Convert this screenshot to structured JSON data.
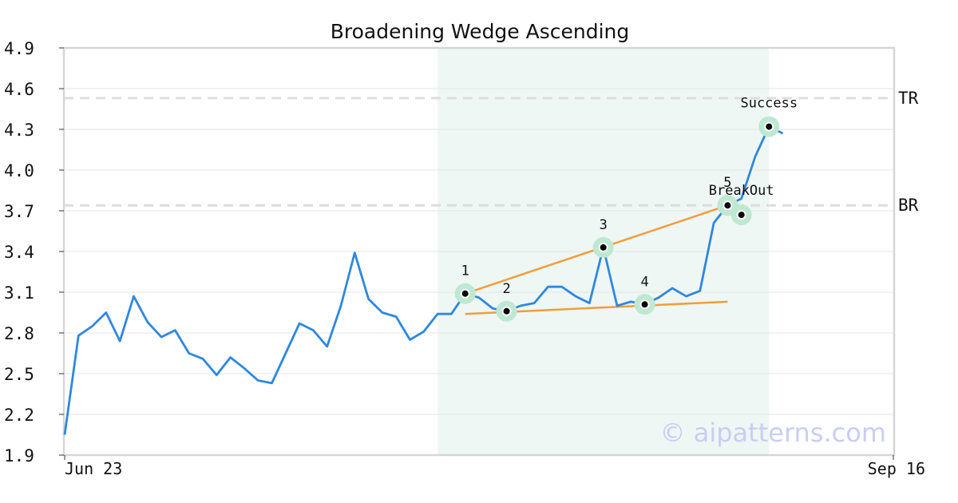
{
  "chart_data": {
    "type": "line",
    "title": "Broadening Wedge Ascending",
    "ylim": [
      1.9,
      4.9
    ],
    "y_ticks": [
      "1.9",
      "2.2",
      "2.5",
      "2.8",
      "3.1",
      "3.4",
      "3.7",
      "4.0",
      "4.3",
      "4.6",
      "4.9"
    ],
    "x_tick_labels": [
      {
        "index": 0,
        "label": "Jun 23"
      },
      {
        "index": 60,
        "label": "Sep 16"
      }
    ],
    "grid": true,
    "series": [
      {
        "color": "#2f87e0",
        "values": [
          2.05,
          2.78,
          2.85,
          2.95,
          2.74,
          3.07,
          2.88,
          2.77,
          2.82,
          2.65,
          2.61,
          2.49,
          2.62,
          2.54,
          2.45,
          2.43,
          2.65,
          2.87,
          2.82,
          2.7,
          3.0,
          3.39,
          3.05,
          2.95,
          2.92,
          2.75,
          2.81,
          2.94,
          2.94,
          3.09,
          3.06,
          2.98,
          2.96,
          3.0,
          3.02,
          3.14,
          3.14,
          3.07,
          3.02,
          3.43,
          3.0,
          3.03,
          3.01,
          3.06,
          3.13,
          3.07,
          3.11,
          3.61,
          3.74,
          3.79,
          4.1,
          4.32,
          4.27
        ]
      }
    ],
    "pattern_zone": {
      "start_index": 27,
      "end_index": 51,
      "color": "#eef7f3"
    },
    "levels": [
      {
        "label": "TR",
        "value": 4.53
      },
      {
        "label": "BR",
        "value": 3.74
      }
    ],
    "points": [
      {
        "label": "1",
        "index": 29,
        "value": 3.09
      },
      {
        "label": "2",
        "index": 32,
        "value": 2.96
      },
      {
        "label": "3",
        "index": 39,
        "value": 3.43
      },
      {
        "label": "4",
        "index": 42,
        "value": 3.01
      },
      {
        "label": "5",
        "index": 48,
        "value": 3.74
      }
    ],
    "annotations": [
      {
        "label": "BreakOut",
        "index": 49,
        "value": 3.67
      },
      {
        "label": "Success",
        "index": 51,
        "value": 4.32
      }
    ],
    "trendlines": [
      {
        "from": [
          29,
          3.09
        ],
        "to": [
          48,
          3.74
        ],
        "color": "#f39c3c"
      },
      {
        "from": [
          29,
          2.94
        ],
        "to": [
          48,
          3.03
        ],
        "color": "#f39c3c"
      }
    ],
    "watermark": "© aipatterns.com"
  }
}
